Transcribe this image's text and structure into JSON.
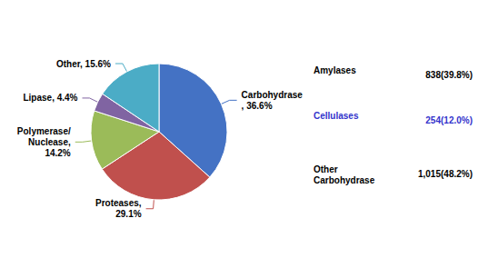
{
  "chart_data": {
    "type": "pie",
    "categories": [
      "Carbohydrase",
      "Proteases",
      "Polymerase/\nNuclease",
      "Lipase",
      "Other"
    ],
    "values": [
      36.6,
      29.1,
      14.2,
      4.4,
      15.6
    ],
    "colors": [
      "#4472C4",
      "#C0504D",
      "#9BBB59",
      "#8064A2",
      "#4BACC6"
    ],
    "data_labels": true,
    "value_labels": [
      "Carbohydrase\n, 36.6%",
      "Proteases,\n29.1%",
      "Polymerase/\nNuclease,\n14.2%",
      "Lipase, 4.4%",
      "Other, 15.6%"
    ],
    "annotations": [
      {
        "label": "Amylases",
        "value_label": "838(39.8%)",
        "color": "#000000"
      },
      {
        "label": "Cellulases",
        "value_label": "254(12.0%)",
        "color": "#3333CC"
      },
      {
        "label": "Other\nCarbohydrase",
        "value_label": "1,015(48.2%)",
        "color": "#000000"
      }
    ]
  }
}
